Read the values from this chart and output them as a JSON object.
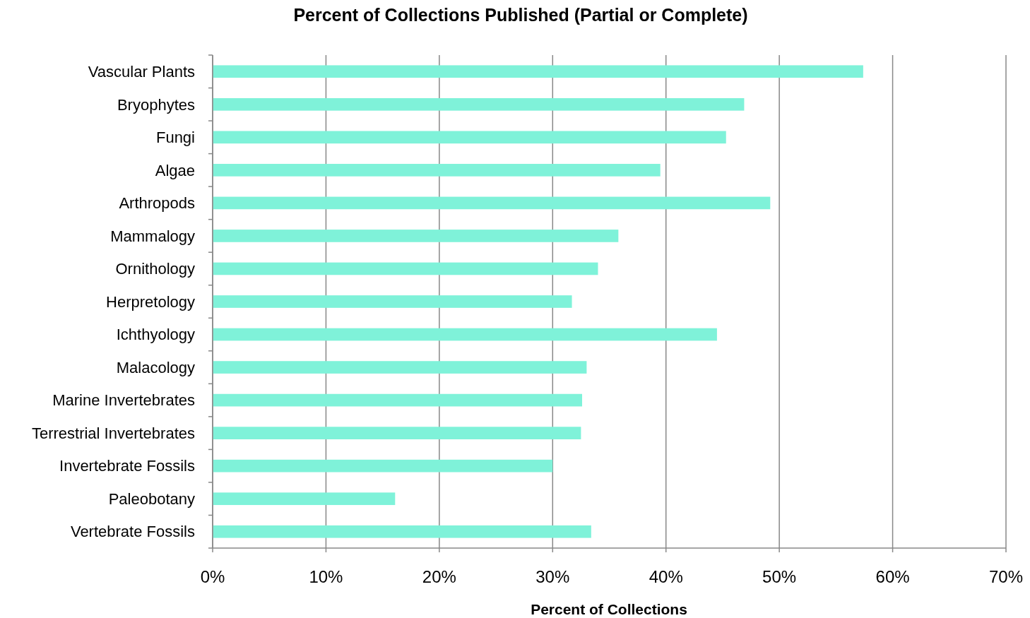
{
  "chart_data": {
    "type": "bar",
    "orientation": "horizontal",
    "title": "Percent of Collections Published (Partial or Complete)",
    "xlabel": "Percent of Collections",
    "categories": [
      "Vascular Plants",
      "Bryophytes",
      "Fungi",
      "Algae",
      "Arthropods",
      "Mammalogy",
      "Ornithology",
      "Herpretology",
      "Ichthyology",
      "Malacology",
      "Marine Invertebrates",
      "Terrestrial Invertebrates",
      "Invertebrate Fossils",
      "Paleobotany",
      "Vertebrate Fossils"
    ],
    "values": [
      57.4,
      46.9,
      45.3,
      39.5,
      49.2,
      35.8,
      34.0,
      31.7,
      44.5,
      33.0,
      32.6,
      32.5,
      30.0,
      16.1,
      33.4
    ],
    "color": "#7ff2d9",
    "xlim": [
      0,
      70
    ],
    "xticks": [
      {
        "value": 0,
        "label": "0%"
      },
      {
        "value": 10,
        "label": "10%"
      },
      {
        "value": 20,
        "label": "20%"
      },
      {
        "value": 30,
        "label": "30%"
      },
      {
        "value": 40,
        "label": "40%"
      },
      {
        "value": 50,
        "label": "50%"
      },
      {
        "value": 60,
        "label": "60%"
      },
      {
        "value": 70,
        "label": "70%"
      }
    ],
    "grid": "x"
  }
}
